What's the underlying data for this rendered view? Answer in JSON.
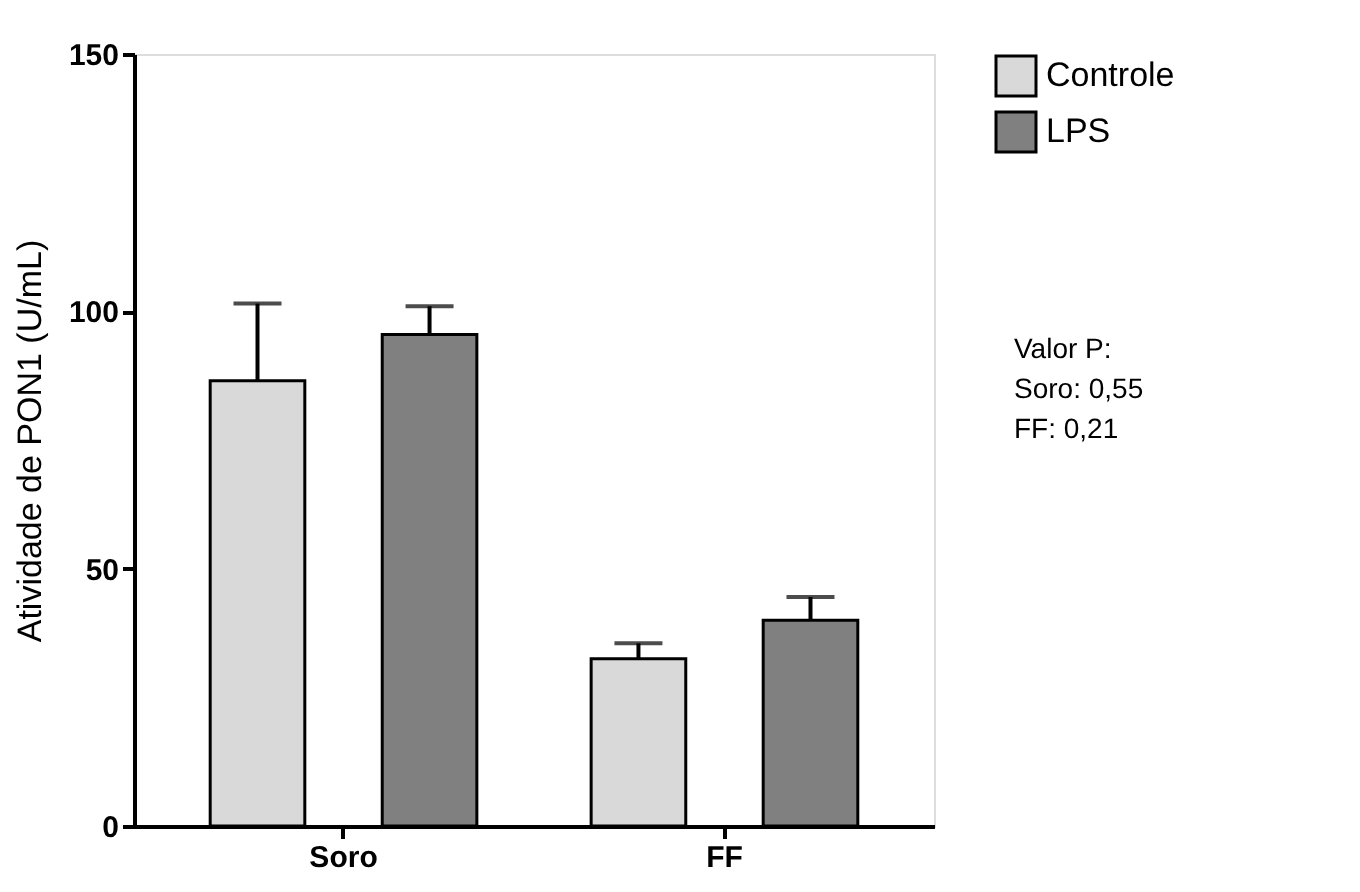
{
  "chart_data": {
    "type": "bar",
    "ylabel": "Atividade de PON1 (U/mL)",
    "categories": [
      "Soro",
      "FF"
    ],
    "series": [
      {
        "name": "Controle",
        "color": "#d9d9d9",
        "values": [
          86.5,
          32.5
        ],
        "errors": [
          [
            86.5,
            101.5
          ],
          [
            32.5,
            35.5
          ]
        ]
      },
      {
        "name": "LPS",
        "color": "#808080",
        "values": [
          95.5,
          40
        ],
        "errors": [
          [
            95.5,
            101
          ],
          [
            40,
            44.5
          ]
        ]
      }
    ],
    "ylim": [
      0,
      150
    ],
    "yticks": [
      0,
      50,
      100,
      150
    ],
    "grid": false,
    "legend": "right",
    "annotations": [
      "Valor P:",
      "Soro: 0,55",
      "FF: 0,21"
    ]
  }
}
